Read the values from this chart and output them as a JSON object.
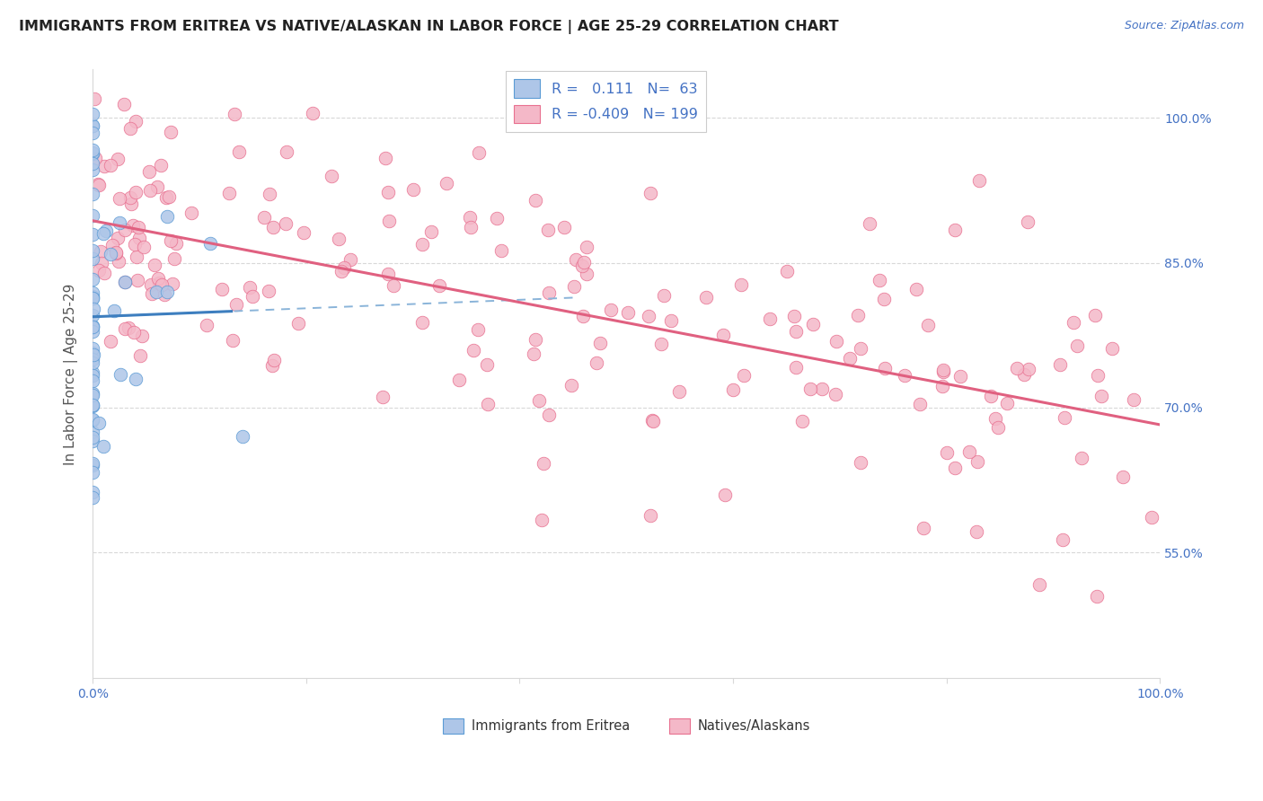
{
  "title": "IMMIGRANTS FROM ERITREA VS NATIVE/ALASKAN IN LABOR FORCE | AGE 25-29 CORRELATION CHART",
  "source": "Source: ZipAtlas.com",
  "ylabel": "In Labor Force | Age 25-29",
  "xlim": [
    0.0,
    1.0
  ],
  "ylim": [
    0.42,
    1.05
  ],
  "yticks": [
    0.55,
    0.7,
    0.85,
    1.0
  ],
  "ytick_labels": [
    "55.0%",
    "70.0%",
    "85.0%",
    "100.0%"
  ],
  "legend_blue_label": "Immigrants from Eritrea",
  "legend_pink_label": "Natives/Alaskans",
  "R_blue": "0.111",
  "N_blue": "63",
  "R_pink": "-0.409",
  "N_pink": "199",
  "blue_fill": "#aec6e8",
  "blue_edge": "#5b9bd5",
  "blue_line": "#3d7ebf",
  "blue_dash": "#8ab4d9",
  "pink_fill": "#f4b8c8",
  "pink_edge": "#e87090",
  "pink_line": "#e06080",
  "grid_color": "#d8d8d8",
  "tick_color": "#4472c4",
  "background": "#ffffff"
}
